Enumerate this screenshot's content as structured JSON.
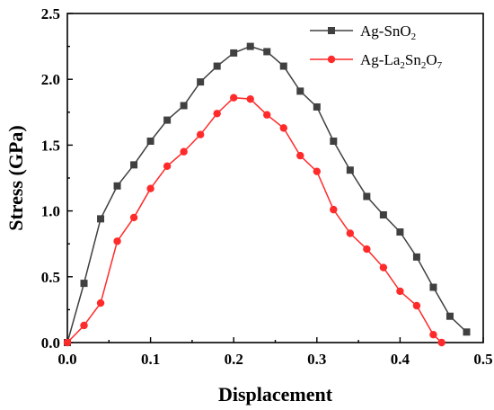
{
  "chart_data": {
    "type": "line",
    "xlabel": "Displacement",
    "ylabel": "Stress (GPa)",
    "xlim": [
      0.0,
      0.5
    ],
    "ylim": [
      0.0,
      2.5
    ],
    "xticks": [
      "0.0",
      "0.1",
      "0.2",
      "0.3",
      "0.4",
      "0.5"
    ],
    "yticks": [
      "0.0",
      "0.5",
      "1.0",
      "1.5",
      "2.0",
      "2.5"
    ],
    "grid": false,
    "legend_position": "top-right",
    "series": [
      {
        "name": "Ag-SnO2",
        "name_parts": [
          [
            "Ag-SnO",
            ""
          ],
          [
            "2",
            "sub"
          ]
        ],
        "color": "#404040",
        "marker": "square",
        "x": [
          0.0,
          0.02,
          0.04,
          0.06,
          0.08,
          0.1,
          0.12,
          0.14,
          0.16,
          0.18,
          0.2,
          0.22,
          0.24,
          0.26,
          0.28,
          0.3,
          0.32,
          0.34,
          0.36,
          0.38,
          0.4,
          0.42,
          0.44,
          0.46,
          0.48
        ],
        "y": [
          0.0,
          0.45,
          0.94,
          1.19,
          1.35,
          1.53,
          1.69,
          1.8,
          1.98,
          2.1,
          2.2,
          2.25,
          2.21,
          2.1,
          1.91,
          1.79,
          1.53,
          1.31,
          1.11,
          0.97,
          0.84,
          0.65,
          0.42,
          0.2,
          0.08
        ]
      },
      {
        "name": "Ag-La2Sn2O7",
        "name_parts": [
          [
            "Ag-La",
            ""
          ],
          [
            "2",
            "sub"
          ],
          [
            "Sn",
            ""
          ],
          [
            "2",
            "sub"
          ],
          [
            "O",
            ""
          ],
          [
            "7",
            "sub"
          ]
        ],
        "color": "#ff2a2a",
        "marker": "circle",
        "x": [
          0.0,
          0.02,
          0.04,
          0.06,
          0.08,
          0.1,
          0.12,
          0.14,
          0.16,
          0.18,
          0.2,
          0.22,
          0.24,
          0.26,
          0.28,
          0.3,
          0.32,
          0.34,
          0.36,
          0.38,
          0.4,
          0.42,
          0.44,
          0.45
        ],
        "y": [
          0.0,
          0.13,
          0.3,
          0.77,
          0.95,
          1.17,
          1.34,
          1.45,
          1.58,
          1.74,
          1.86,
          1.85,
          1.73,
          1.63,
          1.42,
          1.3,
          1.01,
          0.83,
          0.71,
          0.57,
          0.39,
          0.28,
          0.06,
          0.0
        ]
      }
    ]
  }
}
